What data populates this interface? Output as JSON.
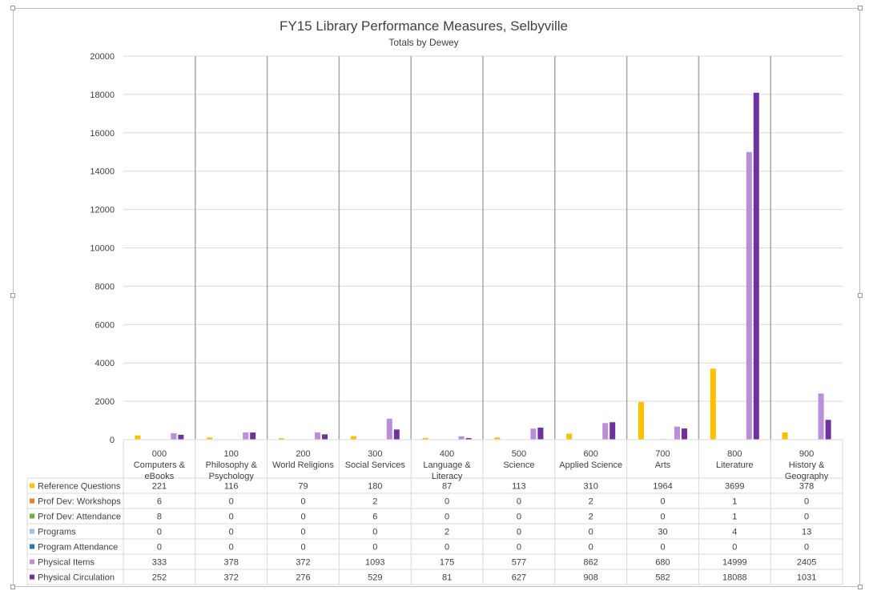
{
  "chart_data": {
    "type": "bar",
    "title": "FY15 Library Performance Measures, Selbyville",
    "subtitle": "Totals by Dewey",
    "ylim": [
      0,
      20000
    ],
    "yticks": [
      "0",
      "2000",
      "4000",
      "6000",
      "8000",
      "10000",
      "12000",
      "14000",
      "16000",
      "18000",
      "20000"
    ],
    "grid": true,
    "legend": "data-table",
    "categories": [
      [
        "000",
        "Computers &",
        "eBooks"
      ],
      [
        "100",
        "Philosophy &",
        "Psychology"
      ],
      [
        "200",
        "World Religions"
      ],
      [
        "300",
        "Social Services"
      ],
      [
        "400",
        "Language &",
        "Literacy"
      ],
      [
        "500",
        "Science"
      ],
      [
        "600",
        "Applied Science"
      ],
      [
        "700",
        "Arts"
      ],
      [
        "800",
        "Literature"
      ],
      [
        "900",
        "History &",
        "Geography"
      ]
    ],
    "series": [
      {
        "name": "Reference Questions",
        "color": "#ffc000",
        "values": [
          221,
          116,
          79,
          180,
          87,
          113,
          310,
          1964,
          3699,
          378
        ]
      },
      {
        "name": "Prof Dev: Workshops",
        "color": "#ed7d31",
        "values": [
          6,
          0,
          0,
          2,
          0,
          0,
          2,
          0,
          1,
          0
        ]
      },
      {
        "name": "Prof Dev: Attendance",
        "color": "#70ad47",
        "values": [
          8,
          0,
          0,
          6,
          0,
          0,
          2,
          0,
          1,
          0
        ]
      },
      {
        "name": "Programs",
        "color": "#9dc3e6",
        "values": [
          0,
          0,
          0,
          0,
          2,
          0,
          0,
          30,
          4,
          13
        ]
      },
      {
        "name": "Program Attendance",
        "color": "#2e75b6",
        "values": [
          0,
          0,
          0,
          0,
          0,
          0,
          0,
          0,
          0,
          0
        ]
      },
      {
        "name": "Physical Items",
        "color": "#b88fd8",
        "values": [
          333,
          378,
          372,
          1093,
          175,
          577,
          862,
          680,
          14999,
          2405
        ]
      },
      {
        "name": "Physical Circulation",
        "color": "#7030a0",
        "values": [
          252,
          372,
          276,
          529,
          81,
          627,
          908,
          582,
          18088,
          1031
        ]
      }
    ]
  }
}
